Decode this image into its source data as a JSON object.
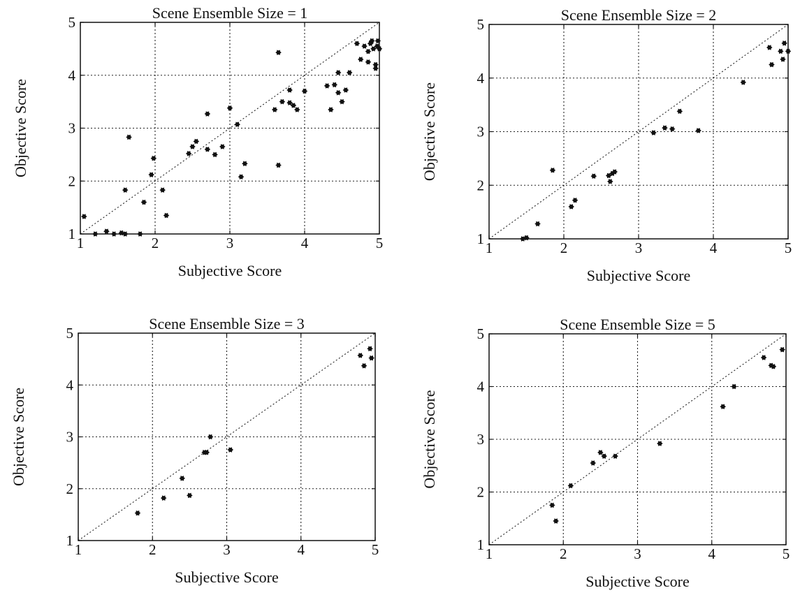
{
  "chart_data": [
    {
      "type": "scatter",
      "title": "Scene Ensemble Size = 1",
      "xlabel": "Subjective Score",
      "ylabel": "Objective Score",
      "xlim": [
        1,
        5
      ],
      "ylim": [
        1,
        5
      ],
      "xticks": [
        1,
        2,
        3,
        4,
        5
      ],
      "yticks": [
        1,
        2,
        3,
        4,
        5
      ],
      "grid": true,
      "reference_line": "y = x",
      "points": [
        [
          1.05,
          1.33
        ],
        [
          1.2,
          1.0
        ],
        [
          1.35,
          1.05
        ],
        [
          1.45,
          1.0
        ],
        [
          1.55,
          1.02
        ],
        [
          1.6,
          1.0
        ],
        [
          1.8,
          1.0
        ],
        [
          1.6,
          1.83
        ],
        [
          1.65,
          2.83
        ],
        [
          1.85,
          1.6
        ],
        [
          1.95,
          2.12
        ],
        [
          1.98,
          2.43
        ],
        [
          2.1,
          1.83
        ],
        [
          2.15,
          1.35
        ],
        [
          2.45,
          2.52
        ],
        [
          2.5,
          2.65
        ],
        [
          2.55,
          2.75
        ],
        [
          2.7,
          3.27
        ],
        [
          2.7,
          2.6
        ],
        [
          2.8,
          2.5
        ],
        [
          2.9,
          2.65
        ],
        [
          3.0,
          3.38
        ],
        [
          3.1,
          3.07
        ],
        [
          3.15,
          2.08
        ],
        [
          3.2,
          2.33
        ],
        [
          3.6,
          3.35
        ],
        [
          3.65,
          4.43
        ],
        [
          3.7,
          3.5
        ],
        [
          3.65,
          2.3
        ],
        [
          3.8,
          3.72
        ],
        [
          3.8,
          3.48
        ],
        [
          3.85,
          3.43
        ],
        [
          3.9,
          3.35
        ],
        [
          4.0,
          3.7
        ],
        [
          4.3,
          3.8
        ],
        [
          4.35,
          3.35
        ],
        [
          4.4,
          3.82
        ],
        [
          4.45,
          4.05
        ],
        [
          4.45,
          3.67
        ],
        [
          4.5,
          3.5
        ],
        [
          4.55,
          3.72
        ],
        [
          4.6,
          4.05
        ],
        [
          4.7,
          4.6
        ],
        [
          4.75,
          4.3
        ],
        [
          4.8,
          4.55
        ],
        [
          4.85,
          4.45
        ],
        [
          4.85,
          4.25
        ],
        [
          4.88,
          4.6
        ],
        [
          4.9,
          4.65
        ],
        [
          4.92,
          4.5
        ],
        [
          4.95,
          4.2
        ],
        [
          4.95,
          4.13
        ],
        [
          4.97,
          4.55
        ],
        [
          4.98,
          4.65
        ],
        [
          5.0,
          4.5
        ]
      ]
    },
    {
      "type": "scatter",
      "title": "Scene Ensemble Size = 2",
      "xlabel": "Subjective Score",
      "ylabel": "Objective Score",
      "xlim": [
        1,
        5
      ],
      "ylim": [
        1,
        5
      ],
      "xticks": [
        1,
        2,
        3,
        4,
        5
      ],
      "yticks": [
        1,
        2,
        3,
        4,
        5
      ],
      "grid": true,
      "reference_line": "y = x",
      "points": [
        [
          1.45,
          1.0
        ],
        [
          1.5,
          1.02
        ],
        [
          1.65,
          1.28
        ],
        [
          1.85,
          2.28
        ],
        [
          2.1,
          1.6
        ],
        [
          2.15,
          1.72
        ],
        [
          2.4,
          2.17
        ],
        [
          2.6,
          2.18
        ],
        [
          2.62,
          2.07
        ],
        [
          2.65,
          2.22
        ],
        [
          2.68,
          2.25
        ],
        [
          3.2,
          2.98
        ],
        [
          3.35,
          3.07
        ],
        [
          3.45,
          3.05
        ],
        [
          3.55,
          3.38
        ],
        [
          3.8,
          3.02
        ],
        [
          4.4,
          3.92
        ],
        [
          4.75,
          4.57
        ],
        [
          4.78,
          4.25
        ],
        [
          4.9,
          4.5
        ],
        [
          4.93,
          4.35
        ],
        [
          4.95,
          4.65
        ],
        [
          5.0,
          4.5
        ]
      ]
    },
    {
      "type": "scatter",
      "title": "Scene Ensemble Size = 3",
      "xlabel": "Subjective Score",
      "ylabel": "Objective Score",
      "xlim": [
        1,
        5
      ],
      "ylim": [
        1,
        5
      ],
      "xticks": [
        1,
        2,
        3,
        4,
        5
      ],
      "yticks": [
        1,
        2,
        3,
        4,
        5
      ],
      "grid": true,
      "reference_line": "y = x",
      "points": [
        [
          1.8,
          1.53
        ],
        [
          2.15,
          1.82
        ],
        [
          2.4,
          2.2
        ],
        [
          2.5,
          1.87
        ],
        [
          2.7,
          2.7
        ],
        [
          2.73,
          2.7
        ],
        [
          2.78,
          3.0
        ],
        [
          3.05,
          2.75
        ],
        [
          4.8,
          4.57
        ],
        [
          4.85,
          4.37
        ],
        [
          4.93,
          4.7
        ],
        [
          4.95,
          4.52
        ]
      ]
    },
    {
      "type": "scatter",
      "title": "Scene Ensemble Size = 5",
      "xlabel": "Subjective Score",
      "ylabel": "Objective Score",
      "xlim": [
        1,
        5
      ],
      "ylim": [
        1,
        5
      ],
      "xticks": [
        1,
        2,
        3,
        4,
        5
      ],
      "yticks": [
        1,
        2,
        3,
        4,
        5
      ],
      "grid": true,
      "reference_line": "y = x",
      "points": [
        [
          1.85,
          1.75
        ],
        [
          1.9,
          1.45
        ],
        [
          2.1,
          2.12
        ],
        [
          2.4,
          2.55
        ],
        [
          2.5,
          2.75
        ],
        [
          2.55,
          2.68
        ],
        [
          2.7,
          2.68
        ],
        [
          3.3,
          2.92
        ],
        [
          4.15,
          3.62
        ],
        [
          4.3,
          4.0
        ],
        [
          4.7,
          4.55
        ],
        [
          4.8,
          4.4
        ],
        [
          4.83,
          4.38
        ],
        [
          4.95,
          4.7
        ]
      ]
    }
  ]
}
